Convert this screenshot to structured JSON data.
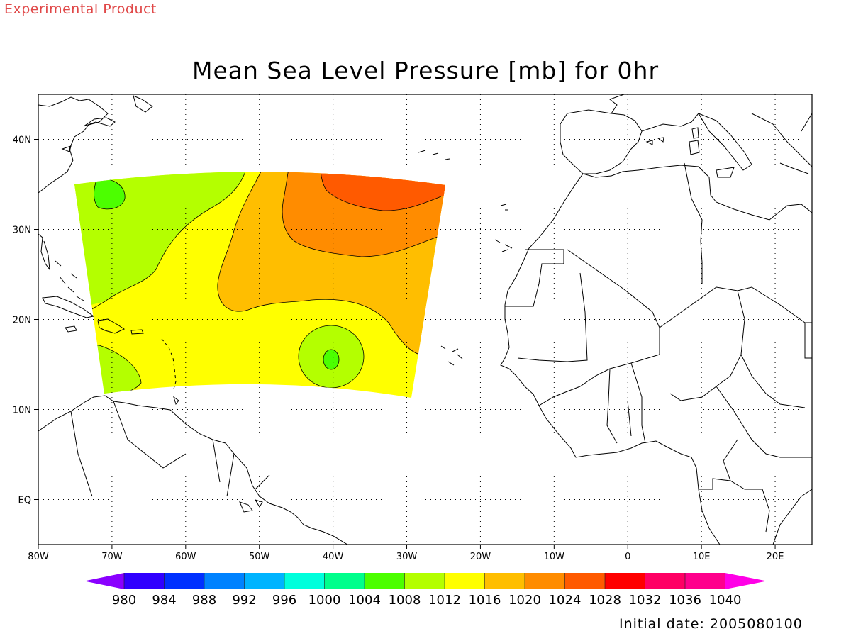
{
  "header": {
    "product_note": "Experimental Product",
    "title": "Mean Sea Level Pressure [mb] for 0hr"
  },
  "footer": {
    "initial_date": "Initial date: 2005080100"
  },
  "map": {
    "projection": "lat-lon",
    "lon_range": [
      -80,
      25
    ],
    "lat_range": [
      -5,
      45
    ],
    "grid": "dotted",
    "lon_ticks": [
      {
        "value": -80,
        "label": "80W"
      },
      {
        "value": -70,
        "label": "70W"
      },
      {
        "value": -60,
        "label": "60W"
      },
      {
        "value": -50,
        "label": "50W"
      },
      {
        "value": -40,
        "label": "40W"
      },
      {
        "value": -30,
        "label": "30W"
      },
      {
        "value": -20,
        "label": "20W"
      },
      {
        "value": -10,
        "label": "10W"
      },
      {
        "value": 0,
        "label": "0"
      },
      {
        "value": 10,
        "label": "10E"
      },
      {
        "value": 20,
        "label": "20E"
      }
    ],
    "lat_ticks": [
      {
        "value": 40,
        "label": "40N"
      },
      {
        "value": 30,
        "label": "30N"
      },
      {
        "value": 20,
        "label": "20N"
      },
      {
        "value": 10,
        "label": "10N"
      },
      {
        "value": 0,
        "label": "EQ"
      }
    ]
  },
  "legend": {
    "below_color": "#8a00ff",
    "above_color": "#ff00e6",
    "bins": [
      {
        "color": "#3000ff"
      },
      {
        "color": "#0030ff"
      },
      {
        "color": "#0082ff"
      },
      {
        "color": "#00b4ff"
      },
      {
        "color": "#00ffdc"
      },
      {
        "color": "#00ff8c"
      },
      {
        "color": "#4cff00"
      },
      {
        "color": "#b4ff00"
      },
      {
        "color": "#ffff00"
      },
      {
        "color": "#ffbe00"
      },
      {
        "color": "#ff8c00"
      },
      {
        "color": "#ff5a00"
      },
      {
        "color": "#ff0000"
      },
      {
        "color": "#ff0064"
      },
      {
        "color": "#ff008c"
      }
    ],
    "labels": [
      "980",
      "984",
      "988",
      "992",
      "996",
      "1000",
      "1004",
      "1008",
      "1012",
      "1016",
      "1020",
      "1024",
      "1028",
      "1032",
      "1036",
      "1040"
    ]
  },
  "field_colors": {
    "c1008": "#4cff00",
    "c1012": "#b4ff00",
    "c1016": "#ffff00",
    "c1020": "#ffbe00",
    "c1024": "#ff8c00",
    "c1028": "#ff5a00"
  }
}
